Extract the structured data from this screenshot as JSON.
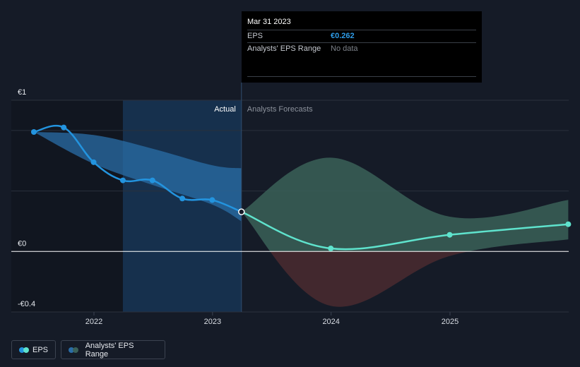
{
  "tooltip": {
    "date": "Mar 31 2023",
    "eps_label": "EPS",
    "eps_value": "€0.262",
    "range_label": "Analysts' EPS Range",
    "range_value": "No data"
  },
  "sections": {
    "actual": "Actual",
    "forecast": "Analysts Forecasts"
  },
  "legend": {
    "eps": "EPS",
    "range": "Analysts' EPS Range"
  },
  "colors": {
    "background": "#151b27",
    "eps_actual": "#2394df",
    "eps_forecast": "#5fe3cd",
    "range_actual": "#2a6da7",
    "range_forecast_positive": "#3a6058",
    "range_forecast_negative": "#4a2a30",
    "highlight_band": "#16304d"
  },
  "chart_data": {
    "type": "line",
    "ylim": [
      -0.4,
      1
    ],
    "yticks": [
      {
        "value": 1,
        "label": "€1"
      },
      {
        "value": 0,
        "label": "€0"
      },
      {
        "value": -0.4,
        "label": "-€0.4"
      }
    ],
    "xlim": [
      "2021-06-15",
      "2025-12-31"
    ],
    "xticks": [
      {
        "date": "2022-01-01",
        "label": "2022"
      },
      {
        "date": "2023-01-01",
        "label": "2023"
      },
      {
        "date": "2024-01-01",
        "label": "2024"
      },
      {
        "date": "2025-01-01",
        "label": "2025"
      }
    ],
    "divider_date": "2023-03-31",
    "highlight_start": "2022-03-31",
    "series": [
      {
        "name": "EPS",
        "kind": "actual",
        "points": [
          {
            "date": "2021-06-30",
            "value": 0.79
          },
          {
            "date": "2021-09-30",
            "value": 0.82
          },
          {
            "date": "2021-12-31",
            "value": 0.59
          },
          {
            "date": "2022-03-31",
            "value": 0.47
          },
          {
            "date": "2022-06-30",
            "value": 0.47
          },
          {
            "date": "2022-09-30",
            "value": 0.35
          },
          {
            "date": "2022-12-31",
            "value": 0.34
          },
          {
            "date": "2023-03-31",
            "value": 0.262
          }
        ]
      },
      {
        "name": "EPS",
        "kind": "forecast",
        "points": [
          {
            "date": "2023-03-31",
            "value": 0.262
          },
          {
            "date": "2023-12-31",
            "value": 0.02
          },
          {
            "date": "2024-12-31",
            "value": 0.11
          },
          {
            "date": "2025-12-31",
            "value": 0.18
          }
        ]
      }
    ],
    "ranges": [
      {
        "name": "Analysts' EPS Range",
        "kind": "actual",
        "upper": [
          {
            "date": "2021-06-30",
            "value": 0.79
          },
          {
            "date": "2021-12-31",
            "value": 0.77
          },
          {
            "date": "2022-06-30",
            "value": 0.68
          },
          {
            "date": "2022-12-31",
            "value": 0.57
          },
          {
            "date": "2023-03-31",
            "value": 0.55
          }
        ],
        "lower": [
          {
            "date": "2021-06-30",
            "value": 0.79
          },
          {
            "date": "2021-12-31",
            "value": 0.58
          },
          {
            "date": "2022-06-30",
            "value": 0.44
          },
          {
            "date": "2022-12-31",
            "value": 0.31
          },
          {
            "date": "2023-03-31",
            "value": 0.2
          }
        ]
      },
      {
        "name": "Analysts' EPS Range",
        "kind": "forecast",
        "upper": [
          {
            "date": "2023-03-31",
            "value": 0.262
          },
          {
            "date": "2023-12-31",
            "value": 0.62
          },
          {
            "date": "2024-12-31",
            "value": 0.23
          },
          {
            "date": "2025-12-31",
            "value": 0.34
          }
        ],
        "lower": [
          {
            "date": "2023-03-31",
            "value": 0.262
          },
          {
            "date": "2023-12-31",
            "value": -0.36
          },
          {
            "date": "2024-12-31",
            "value": -0.03
          },
          {
            "date": "2025-12-31",
            "value": 0.08
          }
        ]
      }
    ]
  }
}
